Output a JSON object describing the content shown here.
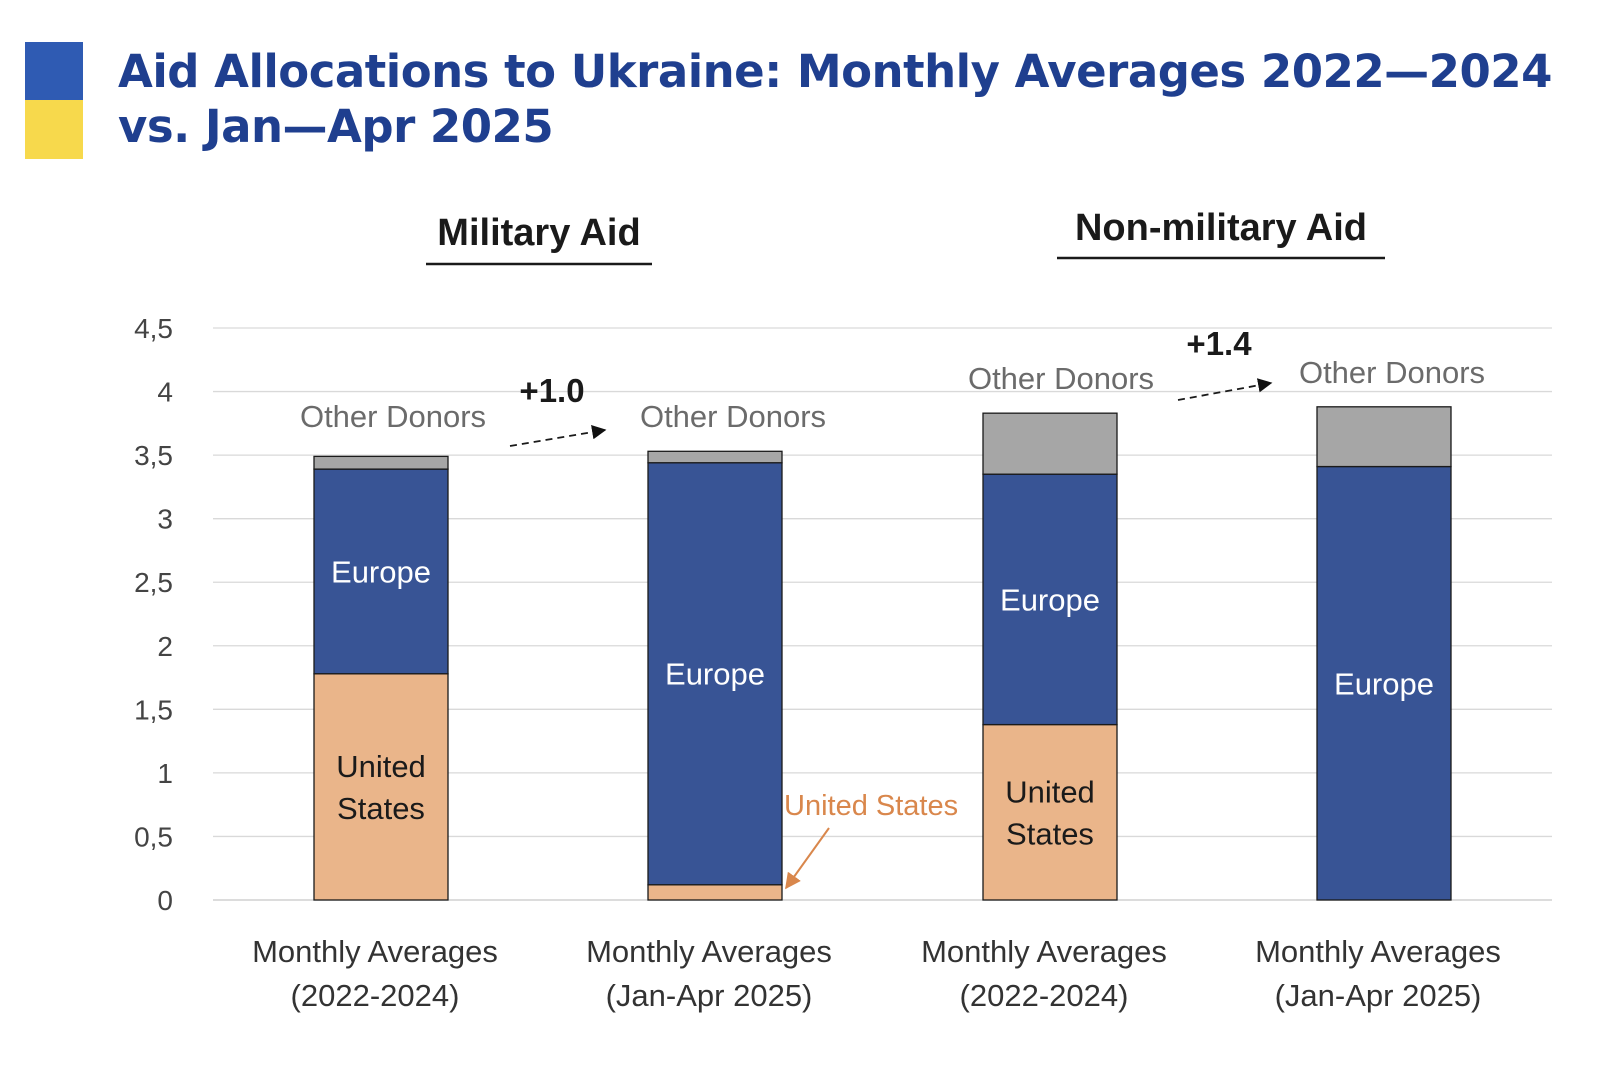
{
  "header": {
    "title_line1": "Aid Allocations to Ukraine: Monthly Averages 2022—2024",
    "title_line2": "vs.  Jan—Apr 2025"
  },
  "colors": {
    "title": "#1f3f8f",
    "flag_blue": "#2f5bb3",
    "flag_yellow": "#f7d94c",
    "united_states": "#eab58a",
    "europe": "#385495",
    "other_donors": "#a6a6a6",
    "us_label": "#d9874c",
    "grid": "#d9d9d9",
    "text": "#444444"
  },
  "chart_data": {
    "type": "bar",
    "stacked": true,
    "groups": [
      {
        "title": "Military Aid",
        "change_label": "+1.0"
      },
      {
        "title": "Non-military Aid",
        "change_label": "+1.4"
      }
    ],
    "categories": [
      [
        "Monthly Averages",
        "(2022-2024)"
      ],
      [
        "Monthly Averages",
        "(Jan-Apr 2025)"
      ],
      [
        "Monthly Averages",
        "(2022-2024)"
      ],
      [
        "Monthly Averages",
        "(Jan-Apr 2025)"
      ]
    ],
    "series": [
      {
        "name": "United States",
        "values": [
          1.78,
          0.12,
          1.38,
          0
        ]
      },
      {
        "name": "Europe",
        "values": [
          1.61,
          3.32,
          1.97,
          3.41
        ]
      },
      {
        "name": "Other Donors",
        "values": [
          0.1,
          0.09,
          0.48,
          0.47
        ]
      }
    ],
    "segment_labels": {
      "united_states": [
        "United\nStates",
        "United States",
        "United\nStates",
        ""
      ],
      "europe": [
        "Europe",
        "Europe",
        "Europe",
        "Europe"
      ],
      "other_donors": [
        "Other Donors",
        "Other Donors",
        "Other Donors",
        "Other Donors"
      ]
    },
    "yticks": [
      "0",
      "0,5",
      "1",
      "1,5",
      "2",
      "2,5",
      "3",
      "3,5",
      "4",
      "4,5"
    ],
    "ylim": [
      0,
      4.5
    ],
    "grid": true,
    "xlabel": "",
    "ylabel": ""
  }
}
